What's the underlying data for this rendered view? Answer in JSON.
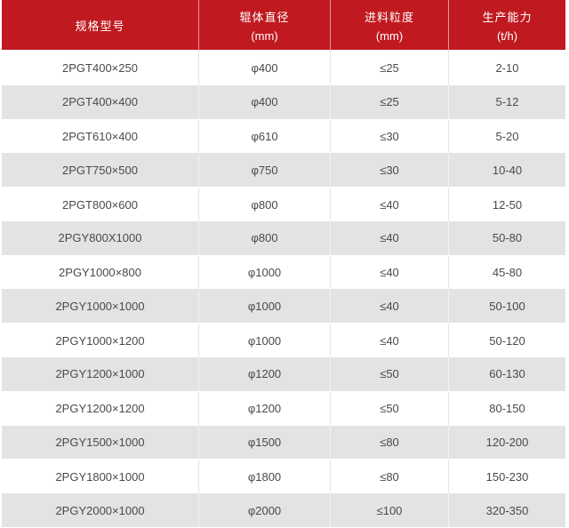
{
  "chart_data": {
    "type": "table",
    "title": "",
    "columns": [
      {
        "label": "规格型号",
        "unit": ""
      },
      {
        "label": "辊体直径",
        "unit": "(mm)"
      },
      {
        "label": "进料粒度",
        "unit": "(mm)"
      },
      {
        "label": "生产能力",
        "unit": "(t/h)"
      }
    ],
    "rows": [
      [
        "2PGT400×250",
        "φ400",
        "≤25",
        "2-10"
      ],
      [
        "2PGT400×400",
        "φ400",
        "≤25",
        "5-12"
      ],
      [
        "2PGT610×400",
        "φ610",
        "≤30",
        "5-20"
      ],
      [
        "2PGT750×500",
        "φ750",
        "≤30",
        "10-40"
      ],
      [
        "2PGT800×600",
        "φ800",
        "≤40",
        "12-50"
      ],
      [
        "2PGY800X1000",
        "φ800",
        "≤40",
        "50-80"
      ],
      [
        "2PGY1000×800",
        "φ1000",
        "≤40",
        "45-80"
      ],
      [
        "2PGY1000×1000",
        "φ1000",
        "≤40",
        "50-100"
      ],
      [
        "2PGY1000×1200",
        "φ1000",
        "≤40",
        "50-120"
      ],
      [
        "2PGY1200×1000",
        "φ1200",
        "≤50",
        "60-130"
      ],
      [
        "2PGY1200×1200",
        "φ1200",
        "≤50",
        "80-150"
      ],
      [
        "2PGY1500×1000",
        "φ1500",
        "≤80",
        "120-200"
      ],
      [
        "2PGY1800×1000",
        "φ1800",
        "≤80",
        "150-230"
      ],
      [
        "2PGY2000×1000",
        "φ2000",
        "≤100",
        "320-350"
      ]
    ],
    "layout": {
      "grid": "alternating-row-stripes",
      "legend_position": "none",
      "column_alignment": [
        "center",
        "center",
        "center",
        "center"
      ]
    }
  },
  "colors": {
    "header_bg": "#c01a20",
    "header_text": "#ffffff",
    "row_bg": "#ffffff",
    "row_alt_bg": "#e3e3e3",
    "body_text": "#4a4a4a"
  }
}
